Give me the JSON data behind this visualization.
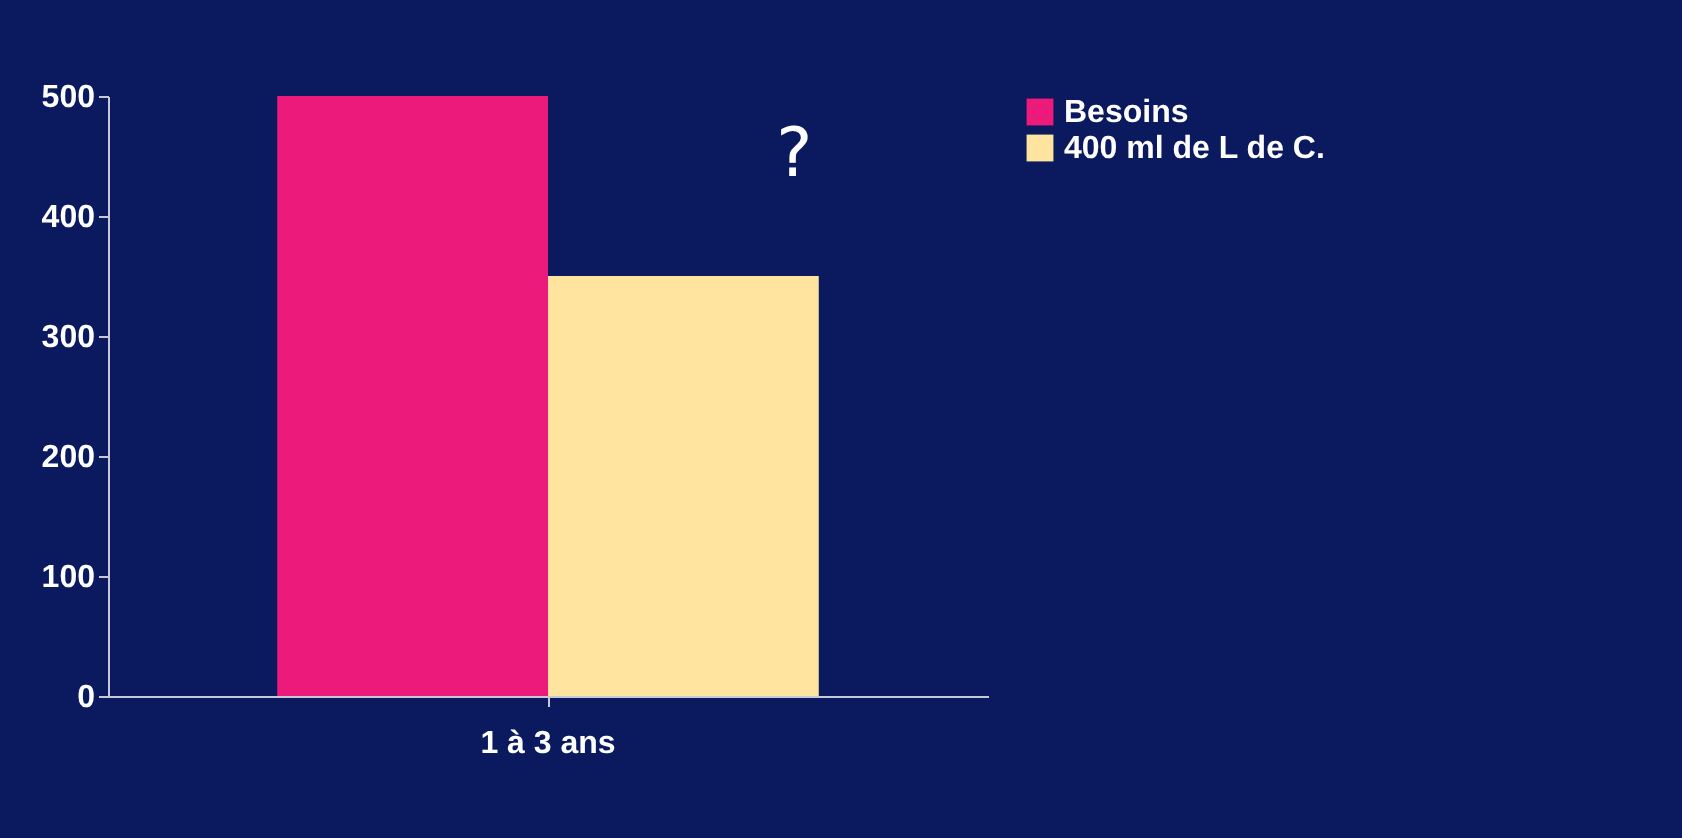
{
  "chart_data": {
    "type": "bar",
    "categories": [
      "1 à 3 ans"
    ],
    "series": [
      {
        "name": "Besoins",
        "color": "#ec1a7a",
        "values": [
          500
        ]
      },
      {
        "name": "400 ml de L de C.",
        "color": "#ffe4a0",
        "values": [
          350
        ]
      }
    ],
    "ylim": [
      0,
      500
    ],
    "yticks": [
      0,
      100,
      200,
      300,
      400,
      500
    ],
    "grid": false,
    "legend": "right",
    "annotations": [
      "?"
    ]
  }
}
